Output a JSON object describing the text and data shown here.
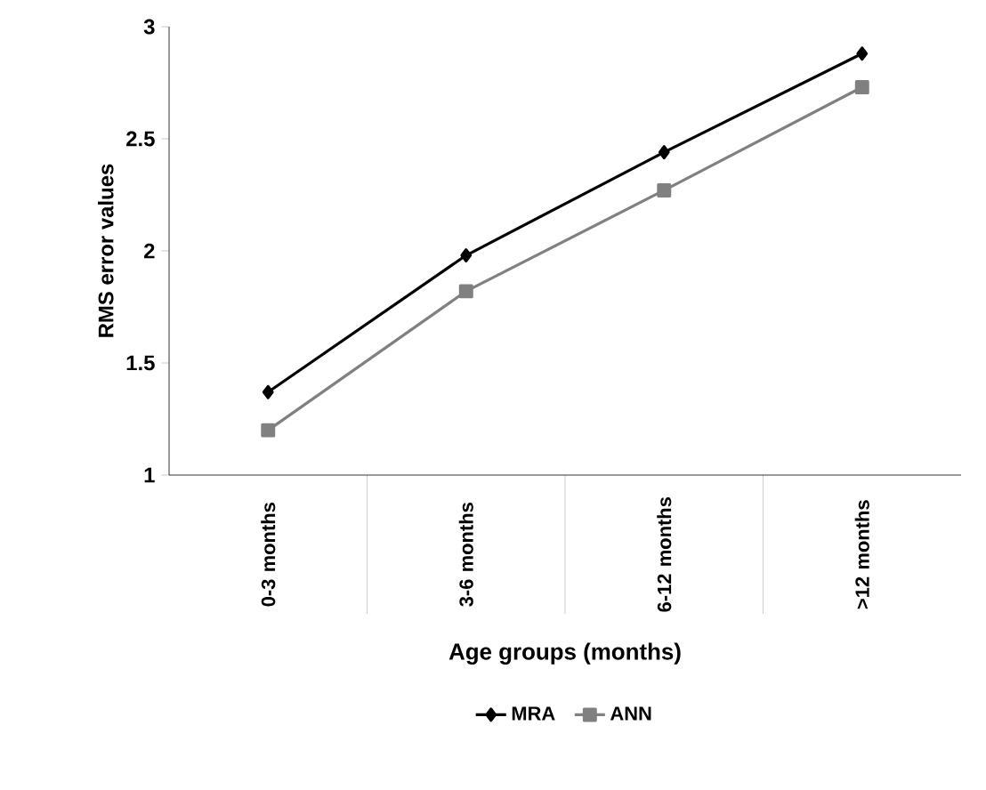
{
  "chart_data": {
    "type": "line",
    "xlabel": "Age groups (months)",
    "ylabel": "RMS error values",
    "categories": [
      "0-3 months",
      "3-6 months",
      "6-12 months",
      ">12 months"
    ],
    "series": [
      {
        "name": "MRA",
        "color": "#000000",
        "marker": "diamond",
        "values": [
          1.37,
          1.98,
          2.44,
          2.88
        ]
      },
      {
        "name": "ANN",
        "color": "#808080",
        "marker": "square",
        "values": [
          1.2,
          1.82,
          2.27,
          2.73
        ]
      }
    ],
    "ylim": [
      1,
      3
    ],
    "yticks": [
      1,
      1.5,
      2,
      2.5,
      3
    ],
    "legend": "bottom",
    "grid": false,
    "line_style": "solid"
  }
}
